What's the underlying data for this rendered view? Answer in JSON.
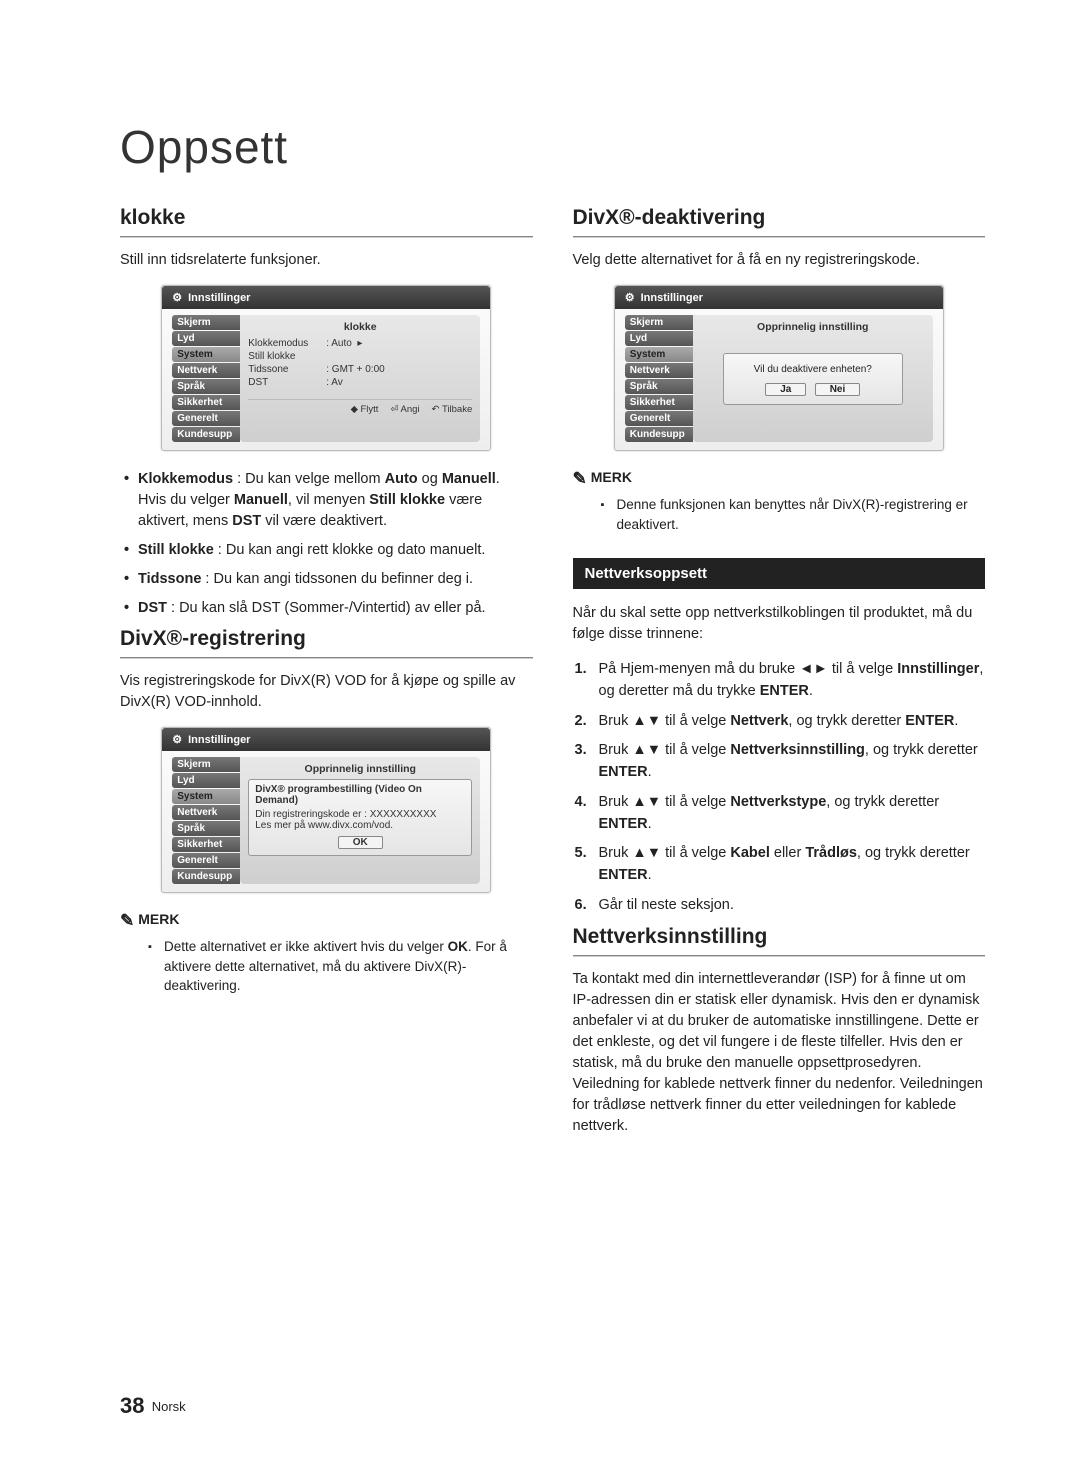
{
  "page": {
    "title": "Oppsett",
    "number": "38",
    "lang": "Norsk"
  },
  "left": {
    "klokke": {
      "heading": "klokke",
      "intro": "Still inn tidsrelaterte funksjoner.",
      "ui": {
        "title": "Innstillinger",
        "tabs": [
          "Skjerm",
          "Lyd",
          "System",
          "Nettverk",
          "Språk",
          "Sikkerhet",
          "Generelt",
          "Kundesupport"
        ],
        "active_tab_index": 2,
        "panel_title": "klokke",
        "rows": [
          {
            "k": "Klokkemodus",
            "v": ": Auto",
            "arrow": "▸"
          },
          {
            "k": "Still klokke",
            "v": ""
          },
          {
            "k": "Tidssone",
            "v": ": GMT + 0:00"
          },
          {
            "k": "DST",
            "v": ": Av"
          }
        ],
        "hints": [
          "◆ Flytt",
          "⏎ Angi",
          "↶ Tilbake"
        ]
      },
      "bullets": [
        "<strong>Klokkemodus</strong> : Du kan velge mellom <strong>Auto</strong> og <strong>Manuell</strong>.<br>Hvis du velger <strong>Manuell</strong>, vil menyen <strong>Still klokke</strong> være aktivert, mens <strong>DST</strong> vil være deaktivert.",
        "<strong>Still klokke</strong> : Du kan angi rett klokke og dato manuelt.",
        "<strong>Tidssone</strong> : Du kan angi tidssonen du befinner deg i.",
        "<strong>DST</strong> : Du kan slå DST (Sommer-/Vintertid) av eller på."
      ]
    },
    "divxreg": {
      "heading": "DivX®-registrering",
      "intro": "Vis registreringskode for DivX(R) VOD for å kjøpe og spille av DivX(R) VOD-innhold.",
      "ui": {
        "title": "Innstillinger",
        "tabs": [
          "Skjerm",
          "Lyd",
          "System",
          "Nettverk",
          "Språk",
          "Sikkerhet",
          "Generelt",
          "Kundesupport"
        ],
        "active_tab_index": 2,
        "panel_title": "Opprinnelig innstilling",
        "pop": {
          "title": "DivX® programbestilling (Video On Demand)",
          "line1": "Din registreringskode er : XXXXXXXXXX",
          "line2": "Les mer på www.divx.com/vod.",
          "ok": "OK"
        }
      },
      "note_label": "MERK",
      "notes": [
        "Dette alternativet er ikke aktivert hvis du velger <strong>OK</strong>. For å aktivere dette alternativet, må du aktivere DivX(R)-deaktivering."
      ]
    }
  },
  "right": {
    "divxdeakt": {
      "heading": "DivX®-deaktivering",
      "intro": "Velg dette alternativet for å få en ny registreringskode.",
      "ui": {
        "title": "Innstillinger",
        "tabs": [
          "Skjerm",
          "Lyd",
          "System",
          "Nettverk",
          "Språk",
          "Sikkerhet",
          "Generelt",
          "Kundesupport"
        ],
        "active_tab_index": 2,
        "panel_title": "Opprinnelig innstilling",
        "dialog": {
          "q": "Vil du deaktivere enheten?",
          "yes": "Ja",
          "no": "Nei"
        }
      },
      "note_label": "MERK",
      "notes": [
        "Denne funksjonen kan benyttes når DivX(R)-registrering er deaktivert."
      ]
    },
    "band": "Nettverksoppsett",
    "nett_intro": "Når du skal sette opp nettverkstilkoblingen til produktet, må du følge disse trinnene:",
    "steps": [
      "På Hjem-menyen må du bruke ◄► til å velge <strong>Innstillinger</strong>, og deretter må du trykke <strong>ENTER</strong>.",
      "Bruk ▲▼ til å velge <strong>Nettverk</strong>, og trykk deretter <strong>ENTER</strong>.",
      "Bruk ▲▼ til å velge <strong>Nettverksinnstilling</strong>, og trykk deretter <strong>ENTER</strong>.",
      "Bruk ▲▼ til å velge <strong>Nettverkstype</strong>, og trykk deretter <strong>ENTER</strong>.",
      "Bruk ▲▼ til å velge <strong>Kabel</strong> eller <strong>Trådløs</strong>, og trykk deretter <strong>ENTER</strong>.",
      "Går til neste seksjon."
    ],
    "nettinst": {
      "heading": "Nettverksinnstilling",
      "para": "Ta kontakt med din internettleverandør (ISP) for å finne ut om IP-adressen din er statisk eller dynamisk. Hvis den er dynamisk anbefaler vi at du bruker de automatiske innstillingene. Dette er det enkleste, og det vil fungere i de fleste tilfeller. Hvis den er statisk, må du bruke den manuelle oppsettprosedyren.\nVeiledning for kablede nettverk finner du nedenfor. Veiledningen for trådløse nettverk finner du etter veiledningen for kablede nettverk."
    }
  }
}
